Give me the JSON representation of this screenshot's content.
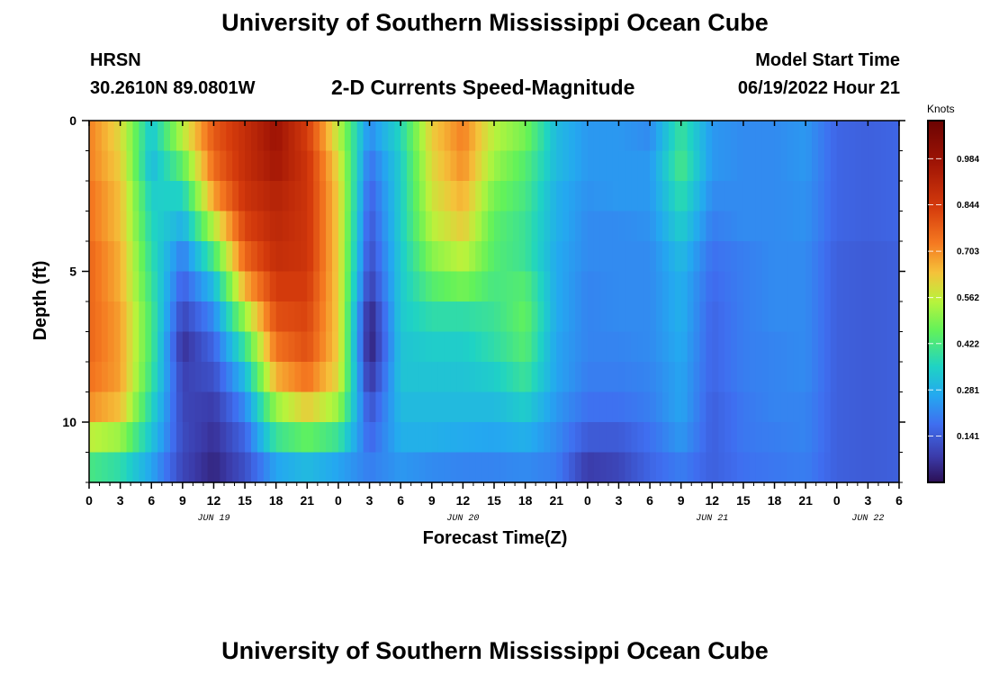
{
  "page": {
    "title_top": "University of Southern Mississippi Ocean Cube",
    "title_bottom": "University of Southern Mississippi Ocean Cube",
    "station": "HRSN",
    "coords": "30.2610N  89.0801W",
    "plot_title": "2-D Currents Speed-Magnitude",
    "model_start_label": "Model Start Time",
    "model_start_value": "06/19/2022 Hour 21"
  },
  "chart_data": {
    "type": "heatmap",
    "title": "2-D Currents Speed-Magnitude",
    "xlabel": "Forecast Time(Z)",
    "ylabel": "Depth (ft)",
    "x_range_hours": [
      0,
      78
    ],
    "y_range_ft": [
      0,
      12
    ],
    "y_inverted": true,
    "x_tick_labels": [
      "0",
      "3",
      "6",
      "9",
      "12",
      "15",
      "18",
      "21",
      "0",
      "3",
      "6",
      "9",
      "12",
      "15",
      "18",
      "21",
      "0",
      "3",
      "6",
      "9",
      "12",
      "15",
      "18",
      "21",
      "0",
      "3",
      "6"
    ],
    "date_labels": [
      {
        "label": "JUN 19",
        "hour": 12
      },
      {
        "label": "JUN 20",
        "hour": 36
      },
      {
        "label": "JUN 21",
        "hour": 60
      },
      {
        "label": "JUN 22",
        "hour": 75
      }
    ],
    "y_tick_labels": [
      {
        "label": "0",
        "value": 0
      },
      {
        "label": "5",
        "value": 5
      },
      {
        "label": "10",
        "value": 10
      }
    ],
    "colorbar": {
      "unit": "Knots",
      "min": 0,
      "max": 1.1,
      "ticks": [
        "0.141",
        "0.281",
        "0.422",
        "0.562",
        "0.703",
        "0.844",
        "0.984"
      ],
      "tick_values": [
        0.141,
        0.281,
        0.422,
        0.562,
        0.703,
        0.844,
        0.984
      ]
    },
    "depth_bins_ft": [
      0.5,
      1.5,
      2.5,
      3.5,
      4.5,
      5.5,
      6.5,
      7.5,
      8.5,
      9.5,
      10.5,
      11.5
    ],
    "time_hours": [
      0,
      3,
      6,
      9,
      12,
      15,
      18,
      21,
      24,
      27,
      30,
      33,
      36,
      39,
      42,
      45,
      48,
      51,
      54,
      57,
      60,
      63,
      66,
      69,
      72,
      75,
      78
    ],
    "speed_knots": [
      [
        0.72,
        0.6,
        0.32,
        0.55,
        0.78,
        0.88,
        0.98,
        0.84,
        0.56,
        0.22,
        0.36,
        0.62,
        0.72,
        0.55,
        0.48,
        0.3,
        0.24,
        0.24,
        0.22,
        0.4,
        0.24,
        0.22,
        0.22,
        0.24,
        0.16,
        0.15,
        0.16
      ],
      [
        0.72,
        0.62,
        0.3,
        0.45,
        0.75,
        0.88,
        0.96,
        0.86,
        0.6,
        0.18,
        0.34,
        0.6,
        0.7,
        0.52,
        0.44,
        0.3,
        0.24,
        0.24,
        0.24,
        0.42,
        0.24,
        0.22,
        0.22,
        0.24,
        0.16,
        0.15,
        0.16
      ],
      [
        0.74,
        0.64,
        0.34,
        0.35,
        0.68,
        0.86,
        0.92,
        0.86,
        0.62,
        0.15,
        0.34,
        0.58,
        0.66,
        0.48,
        0.42,
        0.28,
        0.23,
        0.24,
        0.24,
        0.38,
        0.22,
        0.22,
        0.22,
        0.23,
        0.16,
        0.15,
        0.16
      ],
      [
        0.74,
        0.64,
        0.36,
        0.28,
        0.55,
        0.82,
        0.9,
        0.86,
        0.62,
        0.13,
        0.34,
        0.55,
        0.62,
        0.45,
        0.4,
        0.28,
        0.22,
        0.22,
        0.23,
        0.34,
        0.2,
        0.22,
        0.22,
        0.23,
        0.16,
        0.15,
        0.16
      ],
      [
        0.76,
        0.66,
        0.38,
        0.2,
        0.42,
        0.76,
        0.88,
        0.86,
        0.62,
        0.11,
        0.33,
        0.5,
        0.56,
        0.44,
        0.4,
        0.27,
        0.22,
        0.22,
        0.22,
        0.3,
        0.18,
        0.2,
        0.22,
        0.22,
        0.15,
        0.14,
        0.15
      ],
      [
        0.76,
        0.66,
        0.4,
        0.15,
        0.3,
        0.66,
        0.84,
        0.84,
        0.62,
        0.08,
        0.33,
        0.44,
        0.48,
        0.42,
        0.44,
        0.27,
        0.21,
        0.22,
        0.22,
        0.28,
        0.17,
        0.2,
        0.22,
        0.22,
        0.15,
        0.14,
        0.15
      ],
      [
        0.76,
        0.68,
        0.42,
        0.1,
        0.22,
        0.52,
        0.8,
        0.82,
        0.62,
        0.03,
        0.33,
        0.38,
        0.38,
        0.4,
        0.46,
        0.27,
        0.21,
        0.22,
        0.22,
        0.28,
        0.16,
        0.2,
        0.22,
        0.22,
        0.15,
        0.14,
        0.15
      ],
      [
        0.76,
        0.68,
        0.42,
        0.06,
        0.16,
        0.4,
        0.74,
        0.8,
        0.62,
        0.02,
        0.32,
        0.34,
        0.34,
        0.38,
        0.44,
        0.26,
        0.21,
        0.21,
        0.22,
        0.27,
        0.16,
        0.2,
        0.21,
        0.22,
        0.15,
        0.14,
        0.15
      ],
      [
        0.74,
        0.68,
        0.4,
        0.09,
        0.12,
        0.3,
        0.66,
        0.74,
        0.6,
        0.06,
        0.32,
        0.32,
        0.32,
        0.34,
        0.4,
        0.26,
        0.2,
        0.2,
        0.21,
        0.26,
        0.16,
        0.2,
        0.21,
        0.22,
        0.15,
        0.14,
        0.15
      ],
      [
        0.7,
        0.64,
        0.36,
        0.1,
        0.08,
        0.22,
        0.52,
        0.62,
        0.52,
        0.12,
        0.3,
        0.3,
        0.3,
        0.3,
        0.34,
        0.24,
        0.18,
        0.18,
        0.2,
        0.26,
        0.15,
        0.19,
        0.21,
        0.21,
        0.15,
        0.14,
        0.15
      ],
      [
        0.56,
        0.52,
        0.32,
        0.11,
        0.06,
        0.16,
        0.4,
        0.46,
        0.4,
        0.16,
        0.28,
        0.28,
        0.27,
        0.26,
        0.28,
        0.22,
        0.14,
        0.14,
        0.18,
        0.24,
        0.15,
        0.19,
        0.2,
        0.21,
        0.15,
        0.14,
        0.15
      ],
      [
        0.42,
        0.38,
        0.26,
        0.1,
        0.04,
        0.12,
        0.26,
        0.3,
        0.26,
        0.2,
        0.24,
        0.22,
        0.21,
        0.21,
        0.22,
        0.2,
        0.08,
        0.1,
        0.16,
        0.2,
        0.15,
        0.18,
        0.19,
        0.2,
        0.15,
        0.14,
        0.15
      ]
    ]
  }
}
